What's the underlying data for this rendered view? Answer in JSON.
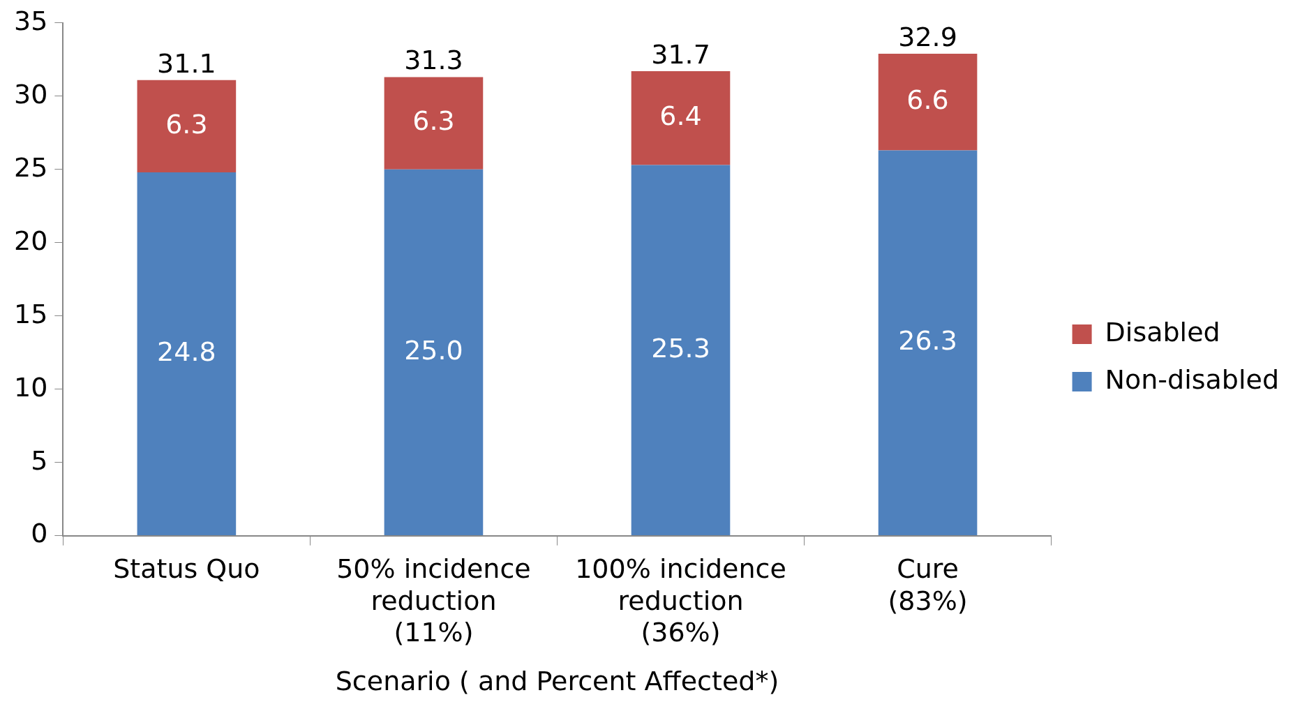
{
  "chart_data": {
    "type": "bar",
    "stacked": true,
    "xlabel": "Scenario ( and Percent Affected*)",
    "categories": [
      "Status Quo",
      "50% incidence\nreduction\n(11%)",
      "100% incidence\nreduction\n(36%)",
      "Cure\n(83%)"
    ],
    "series": [
      {
        "name": "Non-disabled",
        "color": "#4f81bd",
        "values": [
          24.8,
          25.0,
          25.3,
          26.3
        ],
        "value_labels": [
          "24.8",
          "25.0",
          "25.3",
          "26.3"
        ]
      },
      {
        "name": "Disabled",
        "color": "#c0504d",
        "values": [
          6.3,
          6.3,
          6.4,
          6.6
        ],
        "value_labels": [
          "6.3",
          "6.3",
          "6.4",
          "6.6"
        ]
      }
    ],
    "totals": [
      "31.1",
      "31.3",
      "31.7",
      "32.9"
    ],
    "ylim": [
      0,
      35
    ],
    "yticks": [
      0,
      5,
      10,
      15,
      20,
      25,
      30,
      35
    ],
    "grid": false,
    "legend": "right"
  }
}
